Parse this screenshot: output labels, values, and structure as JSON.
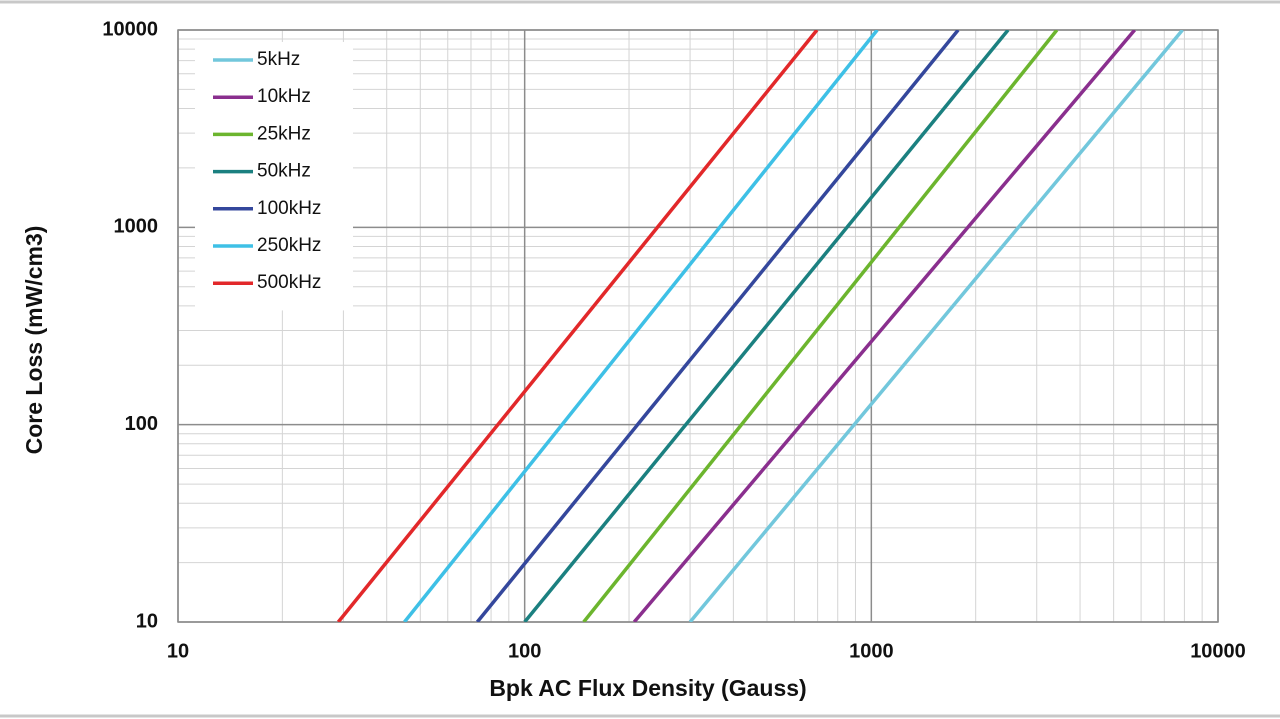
{
  "chart_data": {
    "type": "line",
    "x_label": "Bpk AC Flux Density (Gauss)",
    "y_label": "Core Loss (mW/cm3)",
    "log_x": true,
    "log_y": true,
    "grid": true,
    "legend": "upper left",
    "xlim": [
      10,
      10000
    ],
    "ylim": [
      10,
      10000
    ],
    "xticks": [
      10,
      100,
      1000,
      10000
    ],
    "yticks": [
      10,
      100,
      1000,
      10000
    ],
    "x_minor_ticks": [
      20,
      30,
      40,
      50,
      60,
      70,
      80,
      90,
      200,
      300,
      400,
      500,
      600,
      700,
      800,
      900,
      2000,
      3000,
      4000,
      5000,
      6000,
      7000,
      8000,
      9000
    ],
    "y_minor_ticks": [
      20,
      30,
      40,
      50,
      60,
      70,
      80,
      90,
      200,
      300,
      400,
      500,
      600,
      700,
      800,
      900,
      2000,
      3000,
      4000,
      5000,
      6000,
      7000,
      8000,
      9000
    ],
    "series": [
      {
        "name": "5kHz",
        "color": "#72c7dc",
        "x": [
          300,
          7900
        ],
        "values": [
          10,
          10000
        ]
      },
      {
        "name": "10kHz",
        "color": "#8a2f8e",
        "x": [
          207,
          5750
        ],
        "values": [
          10,
          10000
        ]
      },
      {
        "name": "25kHz",
        "color": "#6cb52e",
        "x": [
          148,
          3430
        ],
        "values": [
          10,
          10000
        ]
      },
      {
        "name": "50kHz",
        "color": "#1b8080",
        "x": [
          100,
          2480
        ],
        "values": [
          10,
          10000
        ]
      },
      {
        "name": "100kHz",
        "color": "#34479c",
        "x": [
          73,
          1780
        ],
        "values": [
          10,
          10000
        ]
      },
      {
        "name": "250kHz",
        "color": "#3ec0e6",
        "x": [
          45,
          1040
        ],
        "values": [
          10,
          10000
        ]
      },
      {
        "name": "500kHz",
        "color": "#e2282a",
        "x": [
          29,
          697
        ],
        "values": [
          10,
          10000
        ]
      }
    ]
  }
}
